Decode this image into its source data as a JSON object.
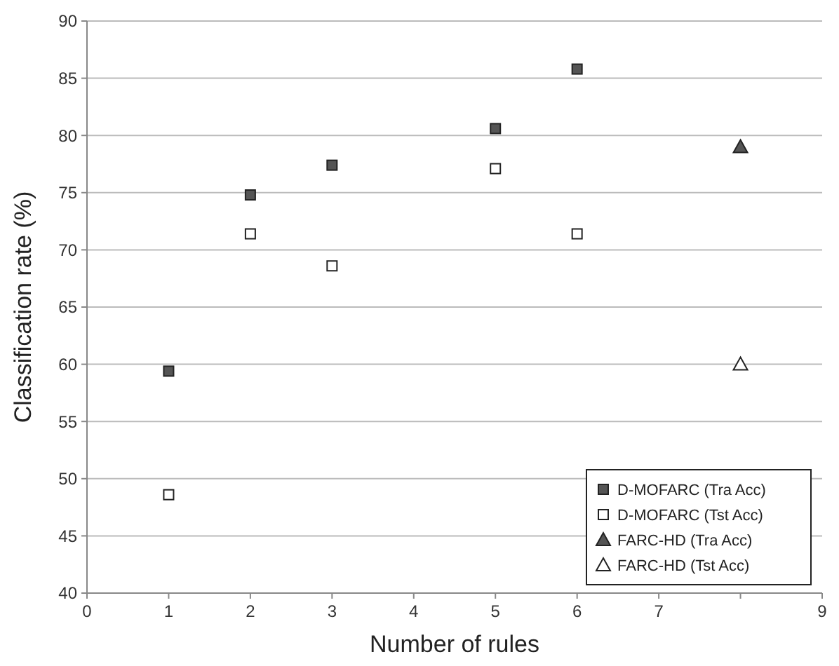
{
  "chart_data": {
    "type": "scatter",
    "xlabel": "Number of rules",
    "ylabel": "Classification rate (%)",
    "xlim": [
      0,
      9
    ],
    "xticks": [
      0,
      1,
      2,
      3,
      4,
      5,
      6,
      7,
      {
        "value": 8,
        "label": null
      },
      9
    ],
    "ylim": [
      40,
      90
    ],
    "yticks": [
      40,
      45,
      50,
      55,
      60,
      65,
      70,
      75,
      80,
      85,
      90
    ],
    "grid": "y",
    "legend": "bottom right",
    "series": [
      {
        "name": "D-MOFARC (Tra Acc)",
        "color": "#555555",
        "marker": "square",
        "x": [
          1,
          2,
          3,
          5,
          6
        ],
        "values": [
          59.4,
          74.8,
          77.4,
          80.6,
          85.8
        ]
      },
      {
        "name": "D-MOFARC (Tst Acc)",
        "color": "#ffffff",
        "marker": "square",
        "x": [
          1,
          2,
          3,
          5,
          6
        ],
        "values": [
          48.6,
          71.4,
          68.6,
          77.1,
          71.4
        ]
      },
      {
        "name": "FARC-HD (Tra Acc)",
        "color": "#555555",
        "marker": "triangle",
        "x": [
          8
        ],
        "values": [
          79.0
        ]
      },
      {
        "name": "FARC-HD (Tst Acc)",
        "color": "#ffffff",
        "marker": "triangle",
        "x": [
          8
        ],
        "values": [
          60.0
        ]
      }
    ]
  }
}
